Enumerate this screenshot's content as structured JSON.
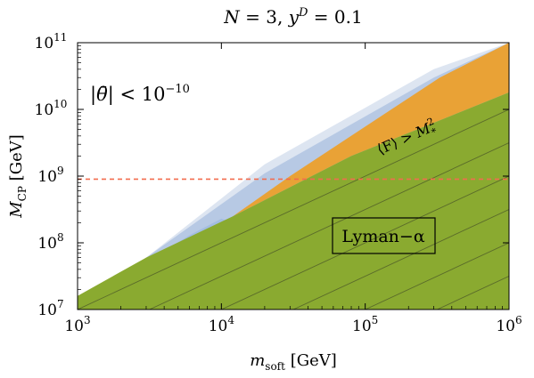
{
  "chart_data": {
    "type": "area",
    "title": "N = 3,  y^D = 0.1",
    "title_parts": {
      "n_label": "N",
      "n_value": "3",
      "y_label": "y",
      "y_sup": "D",
      "y_value": "0.1"
    },
    "xlabel": {
      "main": "m",
      "sub": "soft",
      "unit": "[GeV]"
    },
    "ylabel": {
      "main": "M",
      "sub": "CP",
      "unit": "[GeV]"
    },
    "x_scale": "log",
    "y_scale": "log",
    "xlim": [
      1000,
      1000000
    ],
    "ylim": [
      10000000,
      100000000000
    ],
    "x_ticks": [
      {
        "value": 1000,
        "base": "10",
        "exp": "3"
      },
      {
        "value": 10000,
        "base": "10",
        "exp": "4"
      },
      {
        "value": 100000,
        "base": "10",
        "exp": "5"
      },
      {
        "value": 1000000,
        "base": "10",
        "exp": "6"
      }
    ],
    "y_ticks": [
      {
        "value": 10000000,
        "base": "10",
        "exp": "7"
      },
      {
        "value": 100000000,
        "base": "10",
        "exp": "8"
      },
      {
        "value": 1000000000,
        "base": "10",
        "exp": "9"
      },
      {
        "value": 10000000000,
        "base": "10",
        "exp": "10"
      },
      {
        "value": 100000000000,
        "base": "10",
        "exp": "11"
      }
    ],
    "regions": [
      {
        "name": "outer-light-band",
        "color": "#dde5f1",
        "points": [
          [
            1000,
            10000000
          ],
          [
            1000,
            11000000
          ],
          [
            3000,
            60000000
          ],
          [
            20000,
            1500000000
          ],
          [
            300000,
            40000000000
          ],
          [
            1000000,
            100000000000
          ],
          [
            1000000,
            10000000
          ]
        ]
      },
      {
        "name": "inner-blue-band",
        "color": "#b7c9e4",
        "points": [
          [
            1000,
            10000000
          ],
          [
            1000,
            11000000
          ],
          [
            3000,
            60000000
          ],
          [
            20000,
            1100000000
          ],
          [
            300000,
            30000000000
          ],
          [
            1000000,
            100000000000
          ],
          [
            1000000,
            10000000
          ]
        ]
      },
      {
        "name": "blue-lower-band",
        "color": "#a3bde0",
        "points": [
          [
            1000,
            10000000
          ],
          [
            1000,
            11000000
          ],
          [
            2000,
            30000000
          ],
          [
            6000,
            130000000
          ],
          [
            10000,
            230000000
          ],
          [
            1000000,
            10000000
          ]
        ]
      },
      {
        "name": "F-greater-M-orange",
        "color": "#e9a236",
        "points": [
          [
            30000,
            1000000000
          ],
          [
            330000,
            30000000000
          ],
          [
            1000000,
            100000000000
          ],
          [
            1000000,
            18000000000
          ],
          [
            80000,
            2000000000
          ],
          [
            12000,
            250000000
          ]
        ]
      },
      {
        "name": "lyman-alpha-green",
        "color": "#8aaa30",
        "points": [
          [
            1000,
            10000000
          ],
          [
            1000,
            16000000
          ],
          [
            3000,
            60000000
          ],
          [
            12000,
            250000000
          ],
          [
            80000,
            2000000000
          ],
          [
            1000000,
            18000000000
          ],
          [
            1000000,
            10000000
          ]
        ]
      }
    ],
    "diagonal_lines": {
      "color": "#5a6b2a",
      "slope_decades": 1.0,
      "x_intercepts_at_ymin": [
        1000,
        3162,
        10000,
        31623,
        100000,
        316228,
        1000000
      ],
      "note_level": "1e7"
    },
    "hline": {
      "y": 900000000,
      "color": "#f26c4f",
      "style": "dashed"
    },
    "annotations": [
      {
        "text_parts": {
          "left": "|",
          "theta": "θ̄",
          "right": "| < 10",
          "exp": "−10"
        }
      },
      {
        "text_parts": {
          "lhs": "⟨F⟩ > M",
          "sup": "2",
          "sub": "*"
        },
        "rotation_deg": -24
      },
      {
        "text": "Lyman−α",
        "boxed": true
      }
    ]
  }
}
